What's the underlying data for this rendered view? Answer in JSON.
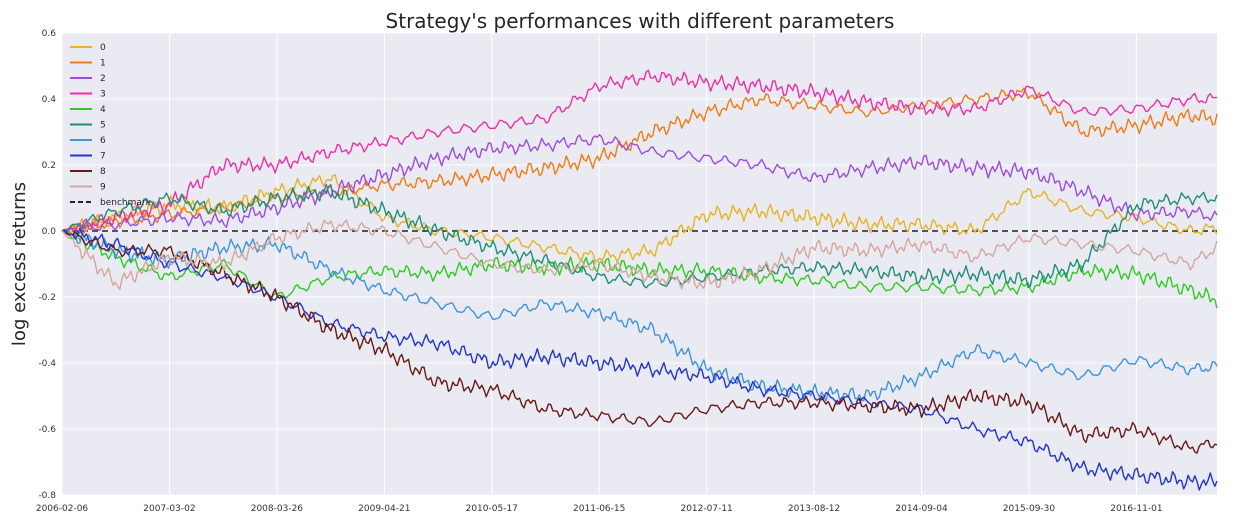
{
  "chart_data": {
    "type": "line",
    "title": "Strategy's performances with different parameters",
    "xlabel": "",
    "ylabel": "log excess returns",
    "ylim": [
      -0.8,
      0.6
    ],
    "yticks": [
      -0.8,
      -0.6,
      -0.4,
      -0.2,
      0.0,
      0.2,
      0.4,
      0.6
    ],
    "ytick_labels": [
      "-0.8",
      "-0.6",
      "-0.4",
      "-0.2",
      "0.0",
      "0.2",
      "0.4",
      "0.6"
    ],
    "xlim": [
      0,
      10.75
    ],
    "x_tick_labels": [
      "2006-02-06",
      "2007-03-02",
      "2008-03-26",
      "2009-04-21",
      "2010-05-17",
      "2011-06-15",
      "2012-07-11",
      "2013-08-12",
      "2014-09-04",
      "2015-09-30",
      "2016-11-01"
    ],
    "grid": true,
    "legend_position": "top-left",
    "x": [
      0,
      0.5,
      1,
      1.5,
      2,
      2.5,
      3,
      3.5,
      4,
      4.5,
      5,
      5.5,
      6,
      6.5,
      7,
      7.5,
      8,
      8.5,
      9,
      9.5,
      10,
      10.5,
      10.75
    ],
    "series": [
      {
        "name": "0",
        "color": "#e6b422",
        "values": [
          0.0,
          0.04,
          0.08,
          0.07,
          0.12,
          0.16,
          0.04,
          0.0,
          -0.02,
          -0.05,
          -0.08,
          -0.06,
          0.05,
          0.06,
          0.04,
          0.02,
          0.02,
          0.0,
          0.12,
          0.06,
          0.04,
          0.0,
          0.01
        ]
      },
      {
        "name": "1",
        "color": "#f07c12",
        "values": [
          0.0,
          0.03,
          0.05,
          0.07,
          0.1,
          0.12,
          0.14,
          0.15,
          0.17,
          0.19,
          0.22,
          0.3,
          0.36,
          0.4,
          0.38,
          0.36,
          0.38,
          0.4,
          0.42,
          0.3,
          0.32,
          0.35,
          0.34
        ]
      },
      {
        "name": "2",
        "color": "#9b4de0",
        "values": [
          0.0,
          0.02,
          0.04,
          0.03,
          0.07,
          0.12,
          0.17,
          0.22,
          0.25,
          0.26,
          0.28,
          0.24,
          0.22,
          0.2,
          0.16,
          0.19,
          0.21,
          0.19,
          0.18,
          0.12,
          0.05,
          0.06,
          0.04
        ]
      },
      {
        "name": "3",
        "color": "#ee2fa8",
        "values": [
          0.0,
          0.04,
          0.08,
          0.2,
          0.2,
          0.24,
          0.27,
          0.3,
          0.32,
          0.34,
          0.44,
          0.47,
          0.45,
          0.44,
          0.42,
          0.39,
          0.37,
          0.37,
          0.43,
          0.36,
          0.37,
          0.4,
          0.4
        ]
      },
      {
        "name": "4",
        "color": "#2ecc1f",
        "values": [
          0.0,
          -0.08,
          -0.14,
          -0.1,
          -0.2,
          -0.14,
          -0.12,
          -0.13,
          -0.1,
          -0.11,
          -0.1,
          -0.12,
          -0.12,
          -0.14,
          -0.15,
          -0.17,
          -0.17,
          -0.18,
          -0.17,
          -0.12,
          -0.13,
          -0.18,
          -0.21
        ]
      },
      {
        "name": "5",
        "color": "#1f8f77",
        "values": [
          0.0,
          0.06,
          0.1,
          0.06,
          0.1,
          0.12,
          0.06,
          0.0,
          -0.05,
          -0.09,
          -0.14,
          -0.16,
          -0.14,
          -0.12,
          -0.11,
          -0.12,
          -0.14,
          -0.13,
          -0.15,
          -0.1,
          0.08,
          0.1,
          0.1
        ]
      },
      {
        "name": "6",
        "color": "#3d95de",
        "values": [
          0.0,
          -0.06,
          -0.09,
          -0.05,
          -0.04,
          -0.12,
          -0.18,
          -0.22,
          -0.26,
          -0.22,
          -0.25,
          -0.3,
          -0.42,
          -0.47,
          -0.49,
          -0.5,
          -0.44,
          -0.36,
          -0.4,
          -0.44,
          -0.39,
          -0.42,
          -0.41
        ]
      },
      {
        "name": "7",
        "color": "#2234d6",
        "values": [
          0.0,
          -0.04,
          -0.1,
          -0.14,
          -0.2,
          -0.28,
          -0.32,
          -0.34,
          -0.4,
          -0.38,
          -0.4,
          -0.42,
          -0.44,
          -0.48,
          -0.5,
          -0.52,
          -0.54,
          -0.6,
          -0.64,
          -0.72,
          -0.74,
          -0.76,
          -0.76
        ]
      },
      {
        "name": "8",
        "color": "#6b1a14",
        "values": [
          0.0,
          -0.06,
          -0.06,
          -0.13,
          -0.2,
          -0.3,
          -0.36,
          -0.46,
          -0.48,
          -0.54,
          -0.56,
          -0.58,
          -0.54,
          -0.52,
          -0.52,
          -0.53,
          -0.54,
          -0.5,
          -0.52,
          -0.62,
          -0.6,
          -0.66,
          -0.64
        ]
      },
      {
        "name": "9",
        "color": "#d4a79a",
        "values": [
          0.0,
          -0.16,
          -0.08,
          -0.1,
          -0.02,
          0.02,
          0.0,
          -0.05,
          -0.1,
          -0.12,
          -0.1,
          -0.14,
          -0.16,
          -0.12,
          -0.05,
          -0.06,
          -0.04,
          -0.08,
          -0.02,
          -0.04,
          -0.06,
          -0.1,
          -0.05
        ]
      }
    ],
    "benchmark": {
      "name": "benchmark",
      "value": 0.0,
      "color": "#222222"
    }
  }
}
